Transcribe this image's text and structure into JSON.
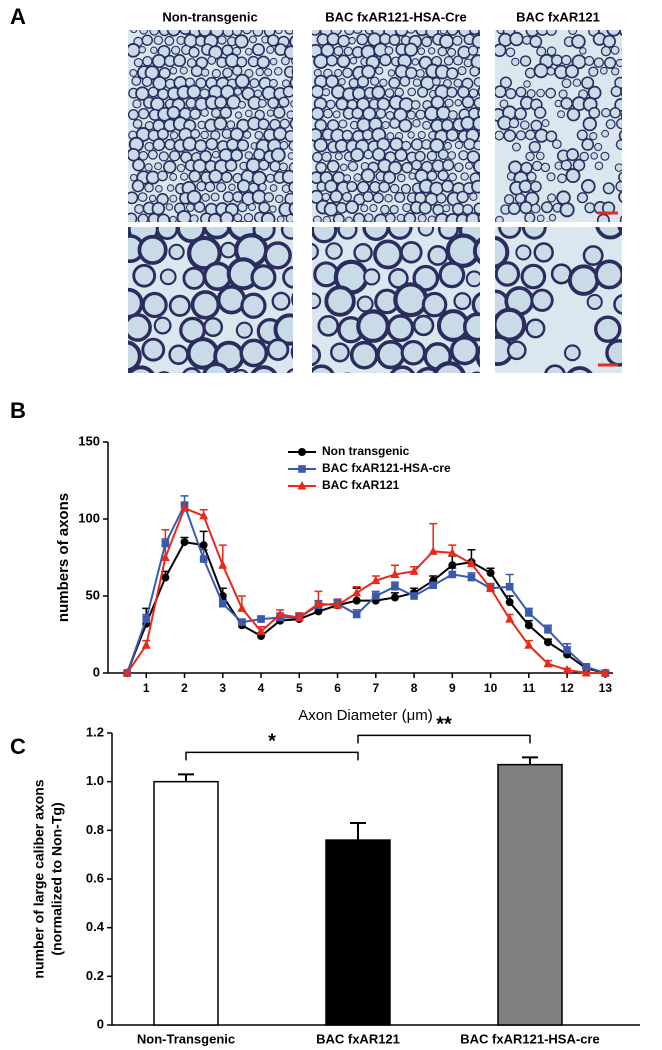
{
  "panels": [
    "A",
    "B",
    "C"
  ],
  "micrographs": {
    "titles": [
      "Non-transgenic",
      "BAC fxAR121-HSA-Cre",
      "BAC fxAR121"
    ]
  },
  "chart_data": [
    {
      "type": "line",
      "ylabel": "numbers of axons",
      "xlabel": "Axon Diameter (μm)",
      "x": [
        0.5,
        1,
        1.5,
        2,
        2.5,
        3,
        3.5,
        4,
        4.5,
        5,
        5.5,
        6,
        6.5,
        7,
        7.5,
        8,
        8.5,
        9,
        9.5,
        10,
        10.5,
        11,
        11.5,
        12,
        12.5,
        13
      ],
      "xlim": [
        0,
        13.2
      ],
      "xticks": [
        1,
        2,
        3,
        4,
        5,
        6,
        7,
        8,
        9,
        10,
        11,
        12,
        13
      ],
      "ylim": [
        0,
        150
      ],
      "yticks": [
        0,
        50,
        100,
        150
      ],
      "legend": "top",
      "series": [
        {
          "name": "Non transgenic",
          "color": "#000000",
          "marker": "circle",
          "values": [
            0,
            32,
            62,
            85,
            83,
            50,
            31,
            24,
            34,
            35,
            40,
            44,
            47,
            47,
            49,
            52,
            60,
            70,
            72,
            65,
            46,
            31,
            20,
            12,
            3,
            0
          ],
          "errors": [
            0,
            10,
            4,
            3,
            9,
            5,
            2,
            2,
            3,
            3,
            3,
            3,
            8,
            3,
            3,
            3,
            3,
            6,
            8,
            3,
            4,
            3,
            2,
            7,
            2,
            1
          ]
        },
        {
          "name": "BAC fxAR121-HSA-cre",
          "color": "#3a5bab",
          "marker": "square",
          "values": [
            0,
            35,
            84,
            109,
            74,
            45,
            33,
            35,
            36,
            36,
            44,
            45,
            38,
            50,
            56,
            50,
            57,
            64,
            62,
            55,
            56,
            39,
            28,
            15,
            4,
            0
          ],
          "errors": [
            0,
            3,
            3,
            6,
            6,
            3,
            2,
            2,
            3,
            3,
            3,
            3,
            3,
            3,
            3,
            3,
            3,
            4,
            3,
            3,
            8,
            3,
            3,
            4,
            2,
            1
          ]
        },
        {
          "name": "BAC fxAR121",
          "color": "#e8291c",
          "marker": "triangle",
          "values": [
            0,
            18,
            75,
            107,
            102,
            70,
            42,
            27,
            38,
            36,
            45,
            44,
            52,
            60,
            64,
            66,
            79,
            78,
            71,
            55,
            35,
            18,
            6,
            2,
            0,
            0
          ],
          "errors": [
            0,
            3,
            18,
            3,
            4,
            13,
            8,
            3,
            3,
            3,
            8,
            4,
            4,
            3,
            6,
            3,
            18,
            5,
            2,
            3,
            3,
            3,
            2,
            1,
            1,
            1
          ]
        }
      ]
    },
    {
      "type": "bar",
      "ylabel": [
        "number of large caliber axons",
        "(normalized to Non-Tg)"
      ],
      "categories": [
        "Non-Transgenic",
        "BAC fxAR121",
        "BAC fxAR121-HSA-cre"
      ],
      "values": [
        1.0,
        0.76,
        1.07
      ],
      "errors": [
        0.03,
        0.07,
        0.03
      ],
      "colors": [
        "#ffffff",
        "#000000",
        "#808080"
      ],
      "ylim": [
        0,
        1.2
      ],
      "yticks": [
        0,
        0.2,
        0.4,
        0.6,
        0.8,
        {
          "value": 1,
          "label": "1.0"
        },
        1.2
      ],
      "annotations": [
        "*",
        "**"
      ]
    }
  ]
}
